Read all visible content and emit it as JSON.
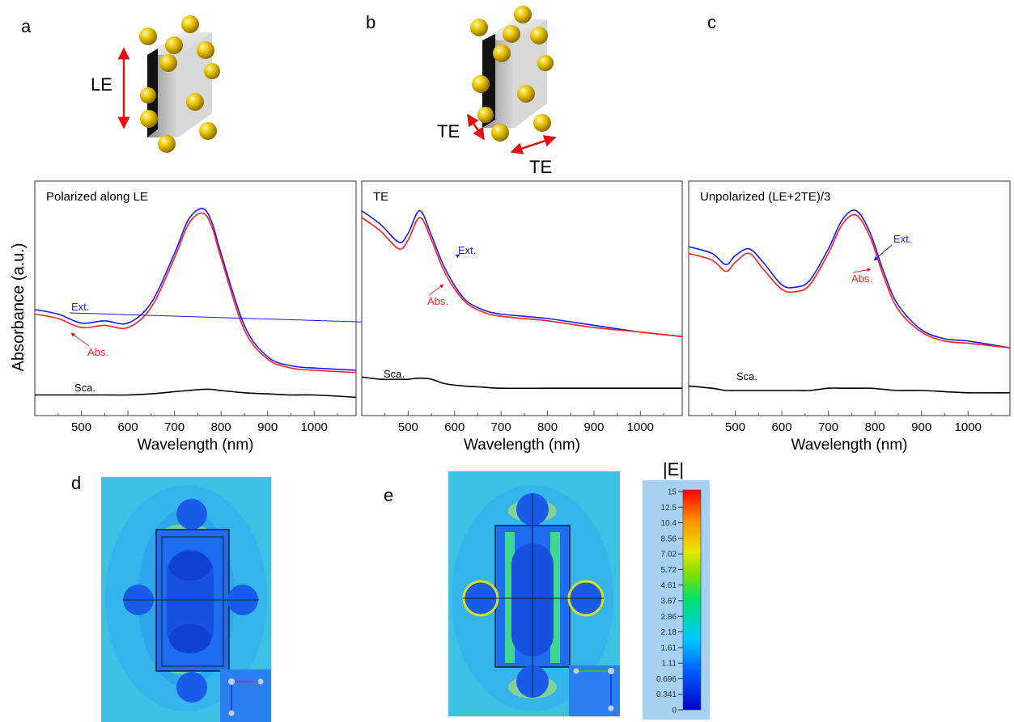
{
  "panel_labels": {
    "a": "a",
    "b": "b",
    "c": "c",
    "d": "d",
    "e": "e"
  },
  "schematic": {
    "le_label": "LE",
    "te_label_1": "TE",
    "te_label_2": "TE"
  },
  "y_axis_label": "Absorbance (a.u.)",
  "colors": {
    "ext": "#1a1aff",
    "abs": "#ff2020",
    "sca": "#000000",
    "gold": "#e6c200",
    "cube": "#c8c8c8"
  },
  "chart_data": [
    {
      "type": "line",
      "title": "Polarized along LE",
      "xlabel": "Wavelength (nm)",
      "ylabel": "Absorbance (a.u.)",
      "xlim": [
        400,
        1090
      ],
      "ylim": [
        0,
        1
      ],
      "xticks": [
        500,
        600,
        700,
        800,
        900,
        1000
      ],
      "tick_labels": [
        "500",
        "600",
        "700",
        "800",
        "900",
        "1000"
      ],
      "annotations": [
        "Ext.",
        "Abs.",
        "Sca."
      ],
      "x": [
        400,
        450,
        500,
        550,
        600,
        650,
        700,
        730,
        760,
        780,
        800,
        850,
        900,
        950,
        1000,
        1090
      ],
      "series": [
        {
          "name": "Ext.",
          "values": [
            0.45,
            0.43,
            0.39,
            0.4,
            0.39,
            0.48,
            0.7,
            0.85,
            0.9,
            0.84,
            0.7,
            0.38,
            0.24,
            0.2,
            0.19,
            0.18
          ]
        },
        {
          "name": "Abs.",
          "values": [
            0.43,
            0.41,
            0.37,
            0.38,
            0.37,
            0.46,
            0.68,
            0.83,
            0.88,
            0.82,
            0.68,
            0.36,
            0.23,
            0.19,
            0.18,
            0.17
          ]
        },
        {
          "name": "Sca.",
          "values": [
            0.07,
            0.07,
            0.07,
            0.07,
            0.07,
            0.075,
            0.085,
            0.09,
            0.095,
            0.095,
            0.09,
            0.08,
            0.075,
            0.07,
            0.07,
            0.06
          ]
        }
      ]
    },
    {
      "type": "line",
      "title": "TE",
      "xlabel": "Wavelength (nm)",
      "ylabel": "Absorbance (a.u.)",
      "xlim": [
        400,
        1090
      ],
      "ylim": [
        0,
        1
      ],
      "xticks": [
        500,
        600,
        700,
        800,
        900,
        1000
      ],
      "tick_labels": [
        "500",
        "600",
        "700",
        "800",
        "900",
        "1000"
      ],
      "annotations": [
        "Ext.",
        "Abs.",
        "Sca."
      ],
      "x": [
        400,
        440,
        480,
        500,
        525,
        550,
        580,
        620,
        660,
        700,
        800,
        900,
        1000,
        1090
      ],
      "series": [
        {
          "name": "Ext.",
          "values": [
            0.89,
            0.83,
            0.75,
            0.79,
            0.89,
            0.78,
            0.63,
            0.5,
            0.45,
            0.43,
            0.41,
            0.38,
            0.35,
            0.33
          ]
        },
        {
          "name": "Abs.",
          "values": [
            0.86,
            0.8,
            0.72,
            0.76,
            0.86,
            0.76,
            0.61,
            0.49,
            0.44,
            0.42,
            0.4,
            0.37,
            0.35,
            0.33
          ]
        },
        {
          "name": "Sca.",
          "values": [
            0.15,
            0.14,
            0.14,
            0.14,
            0.145,
            0.14,
            0.12,
            0.11,
            0.105,
            0.1,
            0.1,
            0.1,
            0.1,
            0.1
          ]
        }
      ]
    },
    {
      "type": "line",
      "title": "Unpolarized (LE+2TE)/3",
      "xlabel": "Wavelength (nm)",
      "ylabel": "Absorbance (a.u.)",
      "xlim": [
        400,
        1090
      ],
      "ylim": [
        0,
        1
      ],
      "xticks": [
        500,
        600,
        700,
        800,
        900,
        1000
      ],
      "tick_labels": [
        "500",
        "600",
        "700",
        "800",
        "900",
        "1000"
      ],
      "annotations": [
        "Ext.",
        "Abs.",
        "Sca."
      ],
      "x": [
        400,
        450,
        480,
        500,
        530,
        560,
        600,
        630,
        660,
        700,
        730,
        760,
        790,
        820,
        850,
        900,
        950,
        1000,
        1090
      ],
      "series": [
        {
          "name": "Ext.",
          "values": [
            0.73,
            0.7,
            0.65,
            0.69,
            0.72,
            0.66,
            0.56,
            0.55,
            0.58,
            0.72,
            0.85,
            0.89,
            0.79,
            0.61,
            0.47,
            0.36,
            0.32,
            0.31,
            0.28
          ]
        },
        {
          "name": "Abs.",
          "values": [
            0.7,
            0.67,
            0.62,
            0.66,
            0.7,
            0.63,
            0.54,
            0.53,
            0.56,
            0.7,
            0.83,
            0.87,
            0.77,
            0.59,
            0.45,
            0.35,
            0.31,
            0.3,
            0.28
          ]
        },
        {
          "name": "Sca.",
          "values": [
            0.11,
            0.1,
            0.09,
            0.09,
            0.09,
            0.09,
            0.09,
            0.09,
            0.09,
            0.1,
            0.1,
            0.1,
            0.1,
            0.095,
            0.09,
            0.09,
            0.085,
            0.08,
            0.08
          ]
        }
      ]
    }
  ],
  "colorbar": {
    "title": "|E|",
    "ticks": [
      "15",
      "12.5",
      "10.4",
      "8.56",
      "7.02",
      "5.72",
      "4.61",
      "3.67",
      "2.86",
      "2.18",
      "1.61",
      "1.11",
      "0.696",
      "0.341",
      "0"
    ]
  }
}
